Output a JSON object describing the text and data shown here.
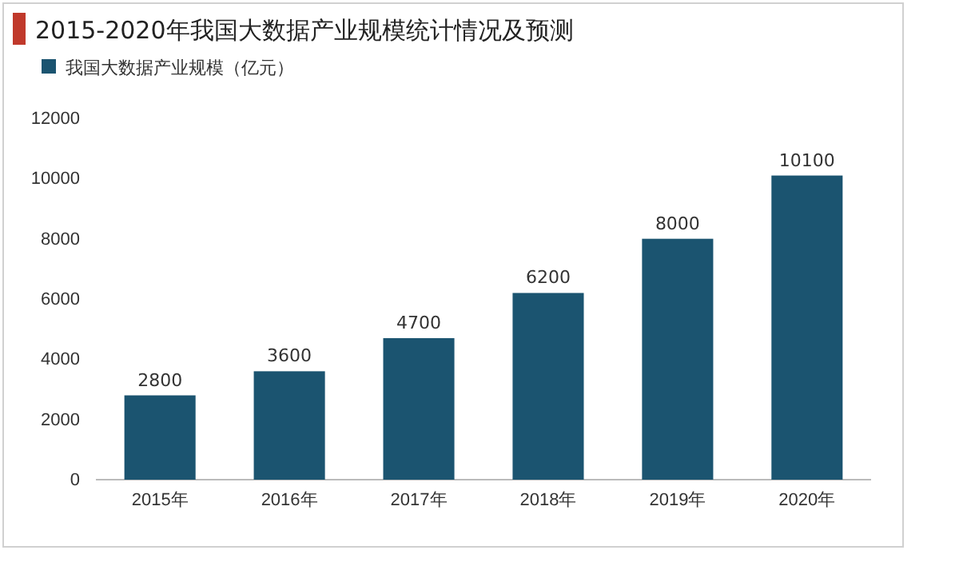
{
  "chart_data": {
    "type": "bar",
    "title": "2015-2020年我国大数据产业规模统计情况及预测",
    "categories": [
      "2015年",
      "2016年",
      "2017年",
      "2018年",
      "2019年",
      "2020年"
    ],
    "series": [
      {
        "name": "我国大数据产业规模（亿元）",
        "color": "#1b5470",
        "values": [
          2800,
          3600,
          4700,
          6200,
          8000,
          10100
        ]
      }
    ],
    "ylim": [
      0,
      12000
    ],
    "yticks": [
      0,
      2000,
      4000,
      6000,
      8000,
      10000,
      12000
    ],
    "data_labels": true,
    "legend": "top left",
    "grid": false
  }
}
